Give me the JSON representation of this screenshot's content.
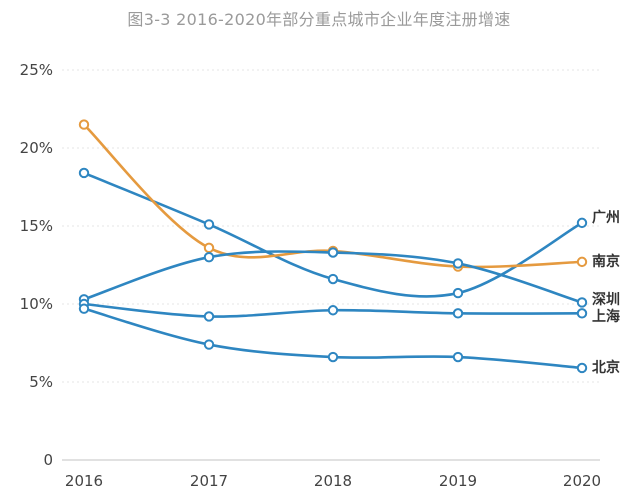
{
  "chart_data": {
    "type": "line",
    "title": "图3-3 2016-2020年部分重点城市企业年度注册增速",
    "xlabel": "",
    "ylabel": "",
    "categories": [
      "2016",
      "2017",
      "2018",
      "2019",
      "2020"
    ],
    "y_ticks": [
      "0",
      "5%",
      "10%",
      "15%",
      "20%",
      "25%"
    ],
    "ylim": [
      0,
      25
    ],
    "grid": true,
    "series": [
      {
        "name": "广州",
        "color": "#2e86c1",
        "values": [
          18.4,
          15.1,
          11.6,
          10.7,
          15.2
        ]
      },
      {
        "name": "南京",
        "color": "#e59a3f",
        "values": [
          21.5,
          13.6,
          13.4,
          12.4,
          12.7
        ]
      },
      {
        "name": "深圳",
        "color": "#2e86c1",
        "values": [
          10.3,
          13.0,
          13.3,
          12.6,
          10.1
        ]
      },
      {
        "name": "上海",
        "color": "#2e86c1",
        "values": [
          10.0,
          9.2,
          9.6,
          9.4,
          9.4
        ]
      },
      {
        "name": "北京",
        "color": "#2e86c1",
        "values": [
          9.7,
          7.4,
          6.6,
          6.6,
          5.9
        ]
      }
    ]
  }
}
